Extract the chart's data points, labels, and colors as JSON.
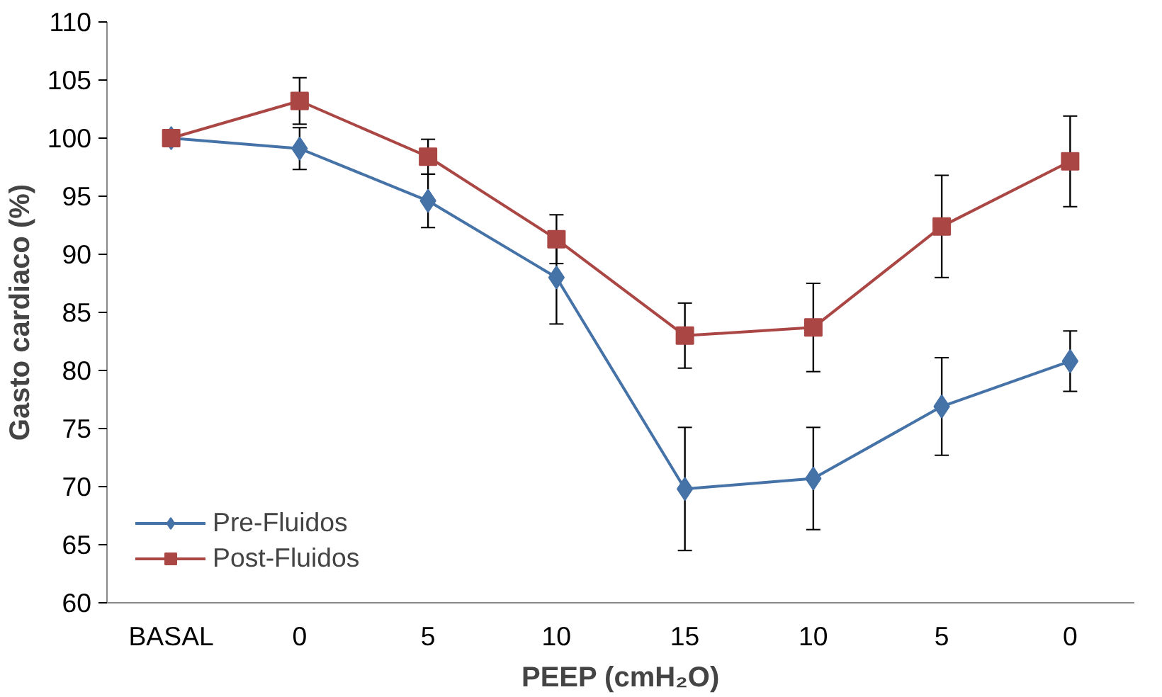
{
  "chart_data": {
    "type": "line",
    "xlabel": "PEEP (cmH₂O)",
    "ylabel": "Gasto cardiaco (%)",
    "categories": [
      "BASAL",
      "0",
      "5",
      "10",
      "15",
      "10",
      "5",
      "0"
    ],
    "ylim": [
      60,
      110
    ],
    "yticks": [
      60,
      65,
      70,
      75,
      80,
      85,
      90,
      95,
      100,
      105,
      110
    ],
    "grid": false,
    "legend": "bottom left",
    "line_style": "solid",
    "series": [
      {
        "name": "Pre-Fluidos",
        "color": "#4572a7",
        "marker": "diamond",
        "values": [
          100,
          99.1,
          94.6,
          88.0,
          69.8,
          70.7,
          76.9,
          80.8
        ],
        "errors": [
          null,
          1.8,
          2.3,
          4.0,
          5.3,
          4.4,
          4.2,
          2.6
        ]
      },
      {
        "name": "Post-Fluidos",
        "color": "#aa4643",
        "marker": "square",
        "values": [
          100,
          103.2,
          98.4,
          91.3,
          83.0,
          83.7,
          92.4,
          98.0
        ],
        "errors": [
          null,
          2.0,
          1.5,
          2.1,
          2.8,
          3.8,
          4.4,
          3.9
        ]
      }
    ]
  }
}
